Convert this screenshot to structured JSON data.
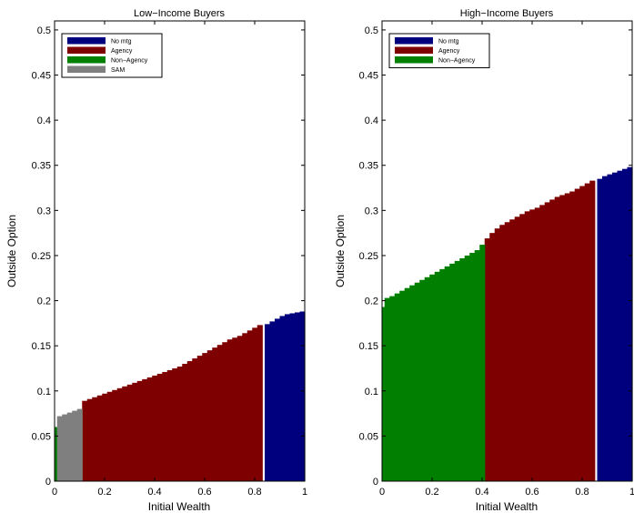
{
  "chart_data": [
    {
      "type": "bar",
      "title": "Low−Income Buyers",
      "xlabel": "Initial Wealth",
      "ylabel": "Outside Option",
      "xlim": [
        0,
        1
      ],
      "ylim": [
        0,
        0.51
      ],
      "xticks": [
        "0",
        "0.2",
        "0.4",
        "0.6",
        "0.8",
        "1"
      ],
      "yticks": [
        "0",
        "0.05",
        "0.1",
        "0.15",
        "0.2",
        "0.25",
        "0.3",
        "0.35",
        "0.4",
        "0.45",
        "0.5"
      ],
      "legend_position": "top-left",
      "series": [
        {
          "name": "No mtg",
          "color": "#00007f",
          "x": [
            0.84,
            0.86,
            0.88,
            0.9,
            0.92,
            0.94,
            0.96,
            0.98
          ],
          "y": [
            0.174,
            0.177,
            0.18,
            0.183,
            0.185,
            0.186,
            0.187,
            0.188
          ]
        },
        {
          "name": "Agency",
          "color": "#7f0000",
          "x": [
            0.11,
            0.13,
            0.15,
            0.17,
            0.19,
            0.21,
            0.23,
            0.25,
            0.27,
            0.29,
            0.31,
            0.33,
            0.35,
            0.37,
            0.39,
            0.41,
            0.43,
            0.45,
            0.47,
            0.49,
            0.51,
            0.53,
            0.55,
            0.57,
            0.59,
            0.61,
            0.63,
            0.65,
            0.67,
            0.69,
            0.71,
            0.73,
            0.75,
            0.77,
            0.79,
            0.81
          ],
          "y": [
            0.089,
            0.091,
            0.093,
            0.095,
            0.097,
            0.099,
            0.101,
            0.103,
            0.105,
            0.107,
            0.109,
            0.111,
            0.113,
            0.115,
            0.117,
            0.119,
            0.121,
            0.123,
            0.125,
            0.127,
            0.13,
            0.133,
            0.136,
            0.139,
            0.142,
            0.145,
            0.148,
            0.151,
            0.154,
            0.157,
            0.159,
            0.161,
            0.164,
            0.167,
            0.17,
            0.173
          ]
        },
        {
          "name": "Non−Agency",
          "color": "#007f00",
          "x": [
            0.0
          ],
          "y": [
            0.06
          ]
        },
        {
          "name": "SAM",
          "color": "#7f7f7f",
          "x": [
            0.01,
            0.03,
            0.05,
            0.07,
            0.09
          ],
          "y": [
            0.072,
            0.074,
            0.076,
            0.078,
            0.08
          ]
        }
      ]
    },
    {
      "type": "bar",
      "title": "High−Income Buyers",
      "xlabel": "Initial Wealth",
      "ylabel": "Outside Option",
      "xlim": [
        0,
        1
      ],
      "ylim": [
        0,
        0.51
      ],
      "xticks": [
        "0",
        "0.2",
        "0.4",
        "0.6",
        "0.8",
        "1"
      ],
      "yticks": [
        "0",
        "0.05",
        "0.1",
        "0.15",
        "0.2",
        "0.25",
        "0.3",
        "0.35",
        "0.4",
        "0.45",
        "0.5"
      ],
      "legend_position": "top-left",
      "series": [
        {
          "name": "No mtg",
          "color": "#00007f",
          "x": [
            0.86,
            0.88,
            0.9,
            0.92,
            0.94,
            0.96,
            0.98
          ],
          "y": [
            0.335,
            0.338,
            0.34,
            0.342,
            0.344,
            0.346,
            0.348
          ]
        },
        {
          "name": "Agency",
          "color": "#7f0000",
          "x": [
            0.41,
            0.43,
            0.45,
            0.47,
            0.49,
            0.51,
            0.53,
            0.55,
            0.57,
            0.59,
            0.61,
            0.63,
            0.65,
            0.67,
            0.69,
            0.71,
            0.73,
            0.75,
            0.77,
            0.79,
            0.81,
            0.83
          ],
          "y": [
            0.269,
            0.275,
            0.28,
            0.284,
            0.287,
            0.29,
            0.293,
            0.296,
            0.299,
            0.301,
            0.303,
            0.306,
            0.309,
            0.312,
            0.315,
            0.317,
            0.319,
            0.321,
            0.324,
            0.327,
            0.33,
            0.333
          ]
        },
        {
          "name": "Non−Agency",
          "color": "#007f00",
          "x": [
            0.0,
            0.01,
            0.03,
            0.05,
            0.07,
            0.09,
            0.11,
            0.13,
            0.15,
            0.17,
            0.19,
            0.21,
            0.23,
            0.25,
            0.27,
            0.29,
            0.31,
            0.33,
            0.35,
            0.37,
            0.39
          ],
          "y": [
            0.193,
            0.203,
            0.205,
            0.208,
            0.211,
            0.214,
            0.217,
            0.22,
            0.223,
            0.226,
            0.229,
            0.232,
            0.235,
            0.238,
            0.241,
            0.244,
            0.247,
            0.25,
            0.253,
            0.256,
            0.262
          ]
        }
      ]
    }
  ]
}
